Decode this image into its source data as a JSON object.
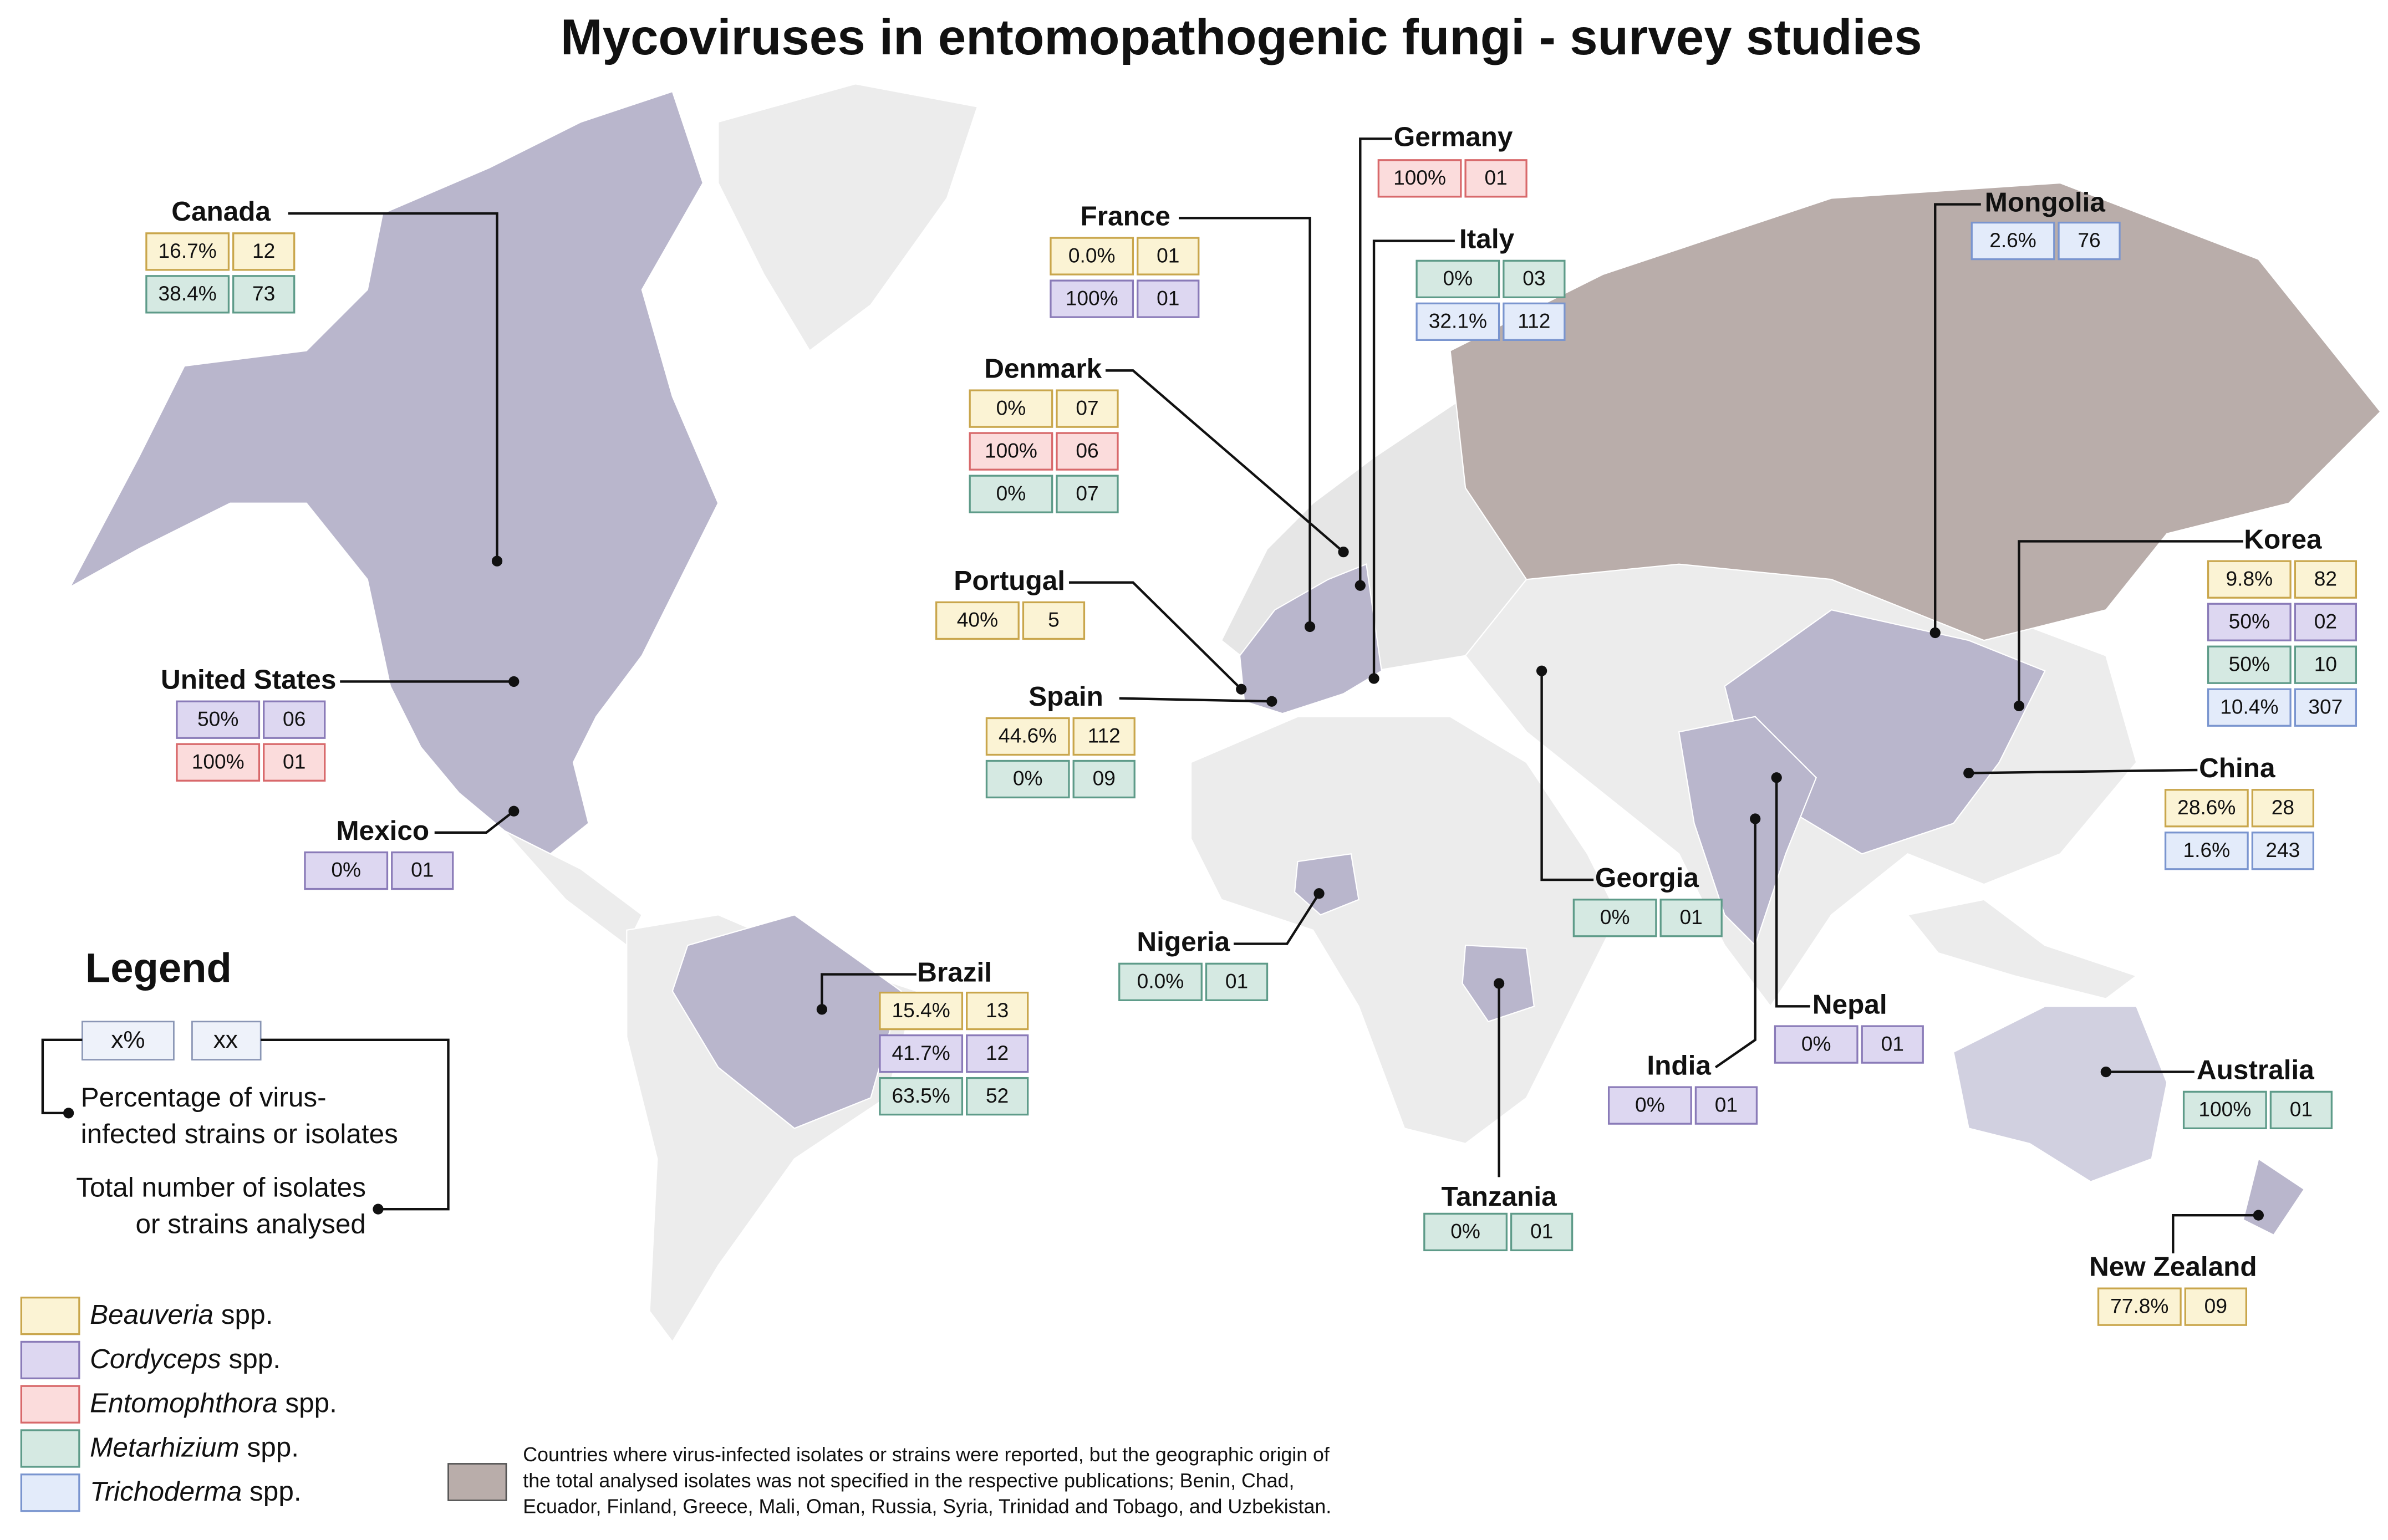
{
  "title": "Mycoviruses in entomopathogenic fungi - survey studies",
  "countries": [
    {
      "name": "Canada",
      "boxes": [
        {
          "genus": "Beauveria",
          "percent": "16.7%",
          "count": "12"
        },
        {
          "genus": "Metarhizium",
          "percent": "38.4%",
          "count": "73"
        }
      ]
    },
    {
      "name": "United States",
      "boxes": [
        {
          "genus": "Cordyceps",
          "percent": "50%",
          "count": "06"
        },
        {
          "genus": "Entomophthora",
          "percent": "100%",
          "count": "01"
        }
      ]
    },
    {
      "name": "Mexico",
      "boxes": [
        {
          "genus": "Cordyceps",
          "percent": "0%",
          "count": "01"
        }
      ]
    },
    {
      "name": "Brazil",
      "boxes": [
        {
          "genus": "Beauveria",
          "percent": "15.4%",
          "count": "13"
        },
        {
          "genus": "Cordyceps",
          "percent": "41.7%",
          "count": "12"
        },
        {
          "genus": "Metarhizium",
          "percent": "63.5%",
          "count": "52"
        }
      ]
    },
    {
      "name": "France",
      "boxes": [
        {
          "genus": "Beauveria",
          "percent": "0.0%",
          "count": "01"
        },
        {
          "genus": "Cordyceps",
          "percent": "100%",
          "count": "01"
        }
      ]
    },
    {
      "name": "Germany",
      "boxes": [
        {
          "genus": "Entomophthora",
          "percent": "100%",
          "count": "01"
        }
      ]
    },
    {
      "name": "Italy",
      "boxes": [
        {
          "genus": "Metarhizium",
          "percent": "0%",
          "count": "03"
        },
        {
          "genus": "Trichoderma",
          "percent": "32.1%",
          "count": "112"
        }
      ]
    },
    {
      "name": "Denmark",
      "boxes": [
        {
          "genus": "Beauveria",
          "percent": "0%",
          "count": "07"
        },
        {
          "genus": "Entomophthora",
          "percent": "100%",
          "count": "06"
        },
        {
          "genus": "Metarhizium",
          "percent": "0%",
          "count": "07"
        }
      ]
    },
    {
      "name": "Portugal",
      "boxes": [
        {
          "genus": "Beauveria",
          "percent": "40%",
          "count": "5"
        }
      ]
    },
    {
      "name": "Spain",
      "boxes": [
        {
          "genus": "Beauveria",
          "percent": "44.6%",
          "count": "112"
        },
        {
          "genus": "Metarhizium",
          "percent": "0%",
          "count": "09"
        }
      ]
    },
    {
      "name": "Nigeria",
      "boxes": [
        {
          "genus": "Metarhizium",
          "percent": "0.0%",
          "count": "01"
        }
      ]
    },
    {
      "name": "Tanzania",
      "boxes": [
        {
          "genus": "Metarhizium",
          "percent": "0%",
          "count": "01"
        }
      ]
    },
    {
      "name": "Georgia",
      "boxes": [
        {
          "genus": "Metarhizium",
          "percent": "0%",
          "count": "01"
        }
      ]
    },
    {
      "name": "India",
      "boxes": [
        {
          "genus": "Cordyceps",
          "percent": "0%",
          "count": "01"
        }
      ]
    },
    {
      "name": "Nepal",
      "boxes": [
        {
          "genus": "Cordyceps",
          "percent": "0%",
          "count": "01"
        }
      ]
    },
    {
      "name": "Mongolia",
      "boxes": [
        {
          "genus": "Trichoderma",
          "percent": "2.6%",
          "count": "76"
        }
      ]
    },
    {
      "name": "Korea",
      "boxes": [
        {
          "genus": "Beauveria",
          "percent": "9.8%",
          "count": "82"
        },
        {
          "genus": "Cordyceps",
          "percent": "50%",
          "count": "02"
        },
        {
          "genus": "Metarhizium",
          "percent": "50%",
          "count": "10"
        },
        {
          "genus": "Trichoderma",
          "percent": "10.4%",
          "count": "307"
        }
      ]
    },
    {
      "name": "China",
      "boxes": [
        {
          "genus": "Beauveria",
          "percent": "28.6%",
          "count": "28"
        },
        {
          "genus": "Trichoderma",
          "percent": "1.6%",
          "count": "243"
        }
      ]
    },
    {
      "name": "Australia",
      "boxes": [
        {
          "genus": "Metarhizium",
          "percent": "100%",
          "count": "01"
        }
      ]
    },
    {
      "name": "New Zealand",
      "boxes": [
        {
          "genus": "Beauveria",
          "percent": "77.8%",
          "count": "09"
        }
      ]
    }
  ],
  "legend": {
    "title": "Legend",
    "example_percent": "x%",
    "example_count": "xx",
    "percent_description": [
      "Percentage of virus-",
      "infected strains or isolates"
    ],
    "count_description": [
      "Total number of isolates",
      "or strains analysed"
    ],
    "genera": [
      {
        "name": "Beauveria",
        "suffix": "spp.",
        "fill": "#fbf3d4",
        "border": "#c9a64c"
      },
      {
        "name": "Cordyceps",
        "suffix": "spp.",
        "fill": "#ddd7f1",
        "border": "#8a7bb8"
      },
      {
        "name": "Entomophthora",
        "suffix": "spp.",
        "fill": "#fbdcdc",
        "border": "#d8696b"
      },
      {
        "name": "Metarhizium",
        "suffix": "spp.",
        "fill": "#d5e9e2",
        "border": "#5e9b89"
      },
      {
        "name": "Trichoderma",
        "suffix": "spp.",
        "fill": "#e3ebfa",
        "border": "#7a95cf"
      }
    ]
  },
  "note": {
    "color": "#b9adaa",
    "lines": [
      "Countries where virus-infected isolates or strains were reported, but the geographic origin of",
      "the total analysed isolates was not specified in the respective publications; Benin, Chad,",
      "Ecuador, Finland, Greece, Mali, Oman, Russia, Syria, Trinidad and Tobago, and Uzbekistan."
    ]
  }
}
